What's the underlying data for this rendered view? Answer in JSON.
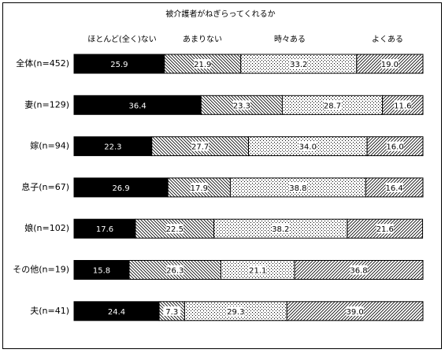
{
  "chart_data": {
    "type": "stacked-bar-100",
    "title": "被介護者がねぎらってくれるか",
    "categories": [
      "全体(n=452)",
      "妻(n=129)",
      "嫁(n=94)",
      "息子(n=67)",
      "娘(n=102)",
      "その他(n=19)",
      "夫(n=41)"
    ],
    "xlim": [
      0,
      100
    ],
    "series": [
      {
        "name": "ほとんど(全く)ない",
        "color": "#000000",
        "pattern": "solid",
        "values": [
          25.9,
          36.4,
          22.3,
          26.9,
          17.6,
          15.8,
          24.4
        ],
        "value_labels": [
          "25.9",
          "36.4",
          "22.3",
          "26.9",
          "17.6",
          "15.8",
          "24.4"
        ]
      },
      {
        "name": "あまりない",
        "color": "#000000",
        "pattern": "hatch-back",
        "values": [
          21.9,
          23.3,
          27.7,
          17.9,
          22.5,
          26.3,
          7.3
        ],
        "value_labels": [
          "21.9",
          "23.3",
          "27.7",
          "17.9",
          "22.5",
          "26.3",
          "7.3"
        ]
      },
      {
        "name": "時々ある",
        "color": "#000000",
        "pattern": "dots",
        "values": [
          33.2,
          28.7,
          34.0,
          38.8,
          38.2,
          21.1,
          29.3
        ],
        "value_labels": [
          "33.2",
          "28.7",
          "34.0",
          "38.8",
          "38.2",
          "21.1",
          "29.3"
        ]
      },
      {
        "name": "よくある",
        "color": "#000000",
        "pattern": "hatch-forward",
        "values": [
          19.0,
          11.6,
          16.0,
          16.4,
          21.6,
          36.8,
          39.0
        ],
        "value_labels": [
          "19.0",
          "11.6",
          "16.0",
          "16.4",
          "21.6",
          "36.8",
          "39.0"
        ]
      }
    ]
  }
}
